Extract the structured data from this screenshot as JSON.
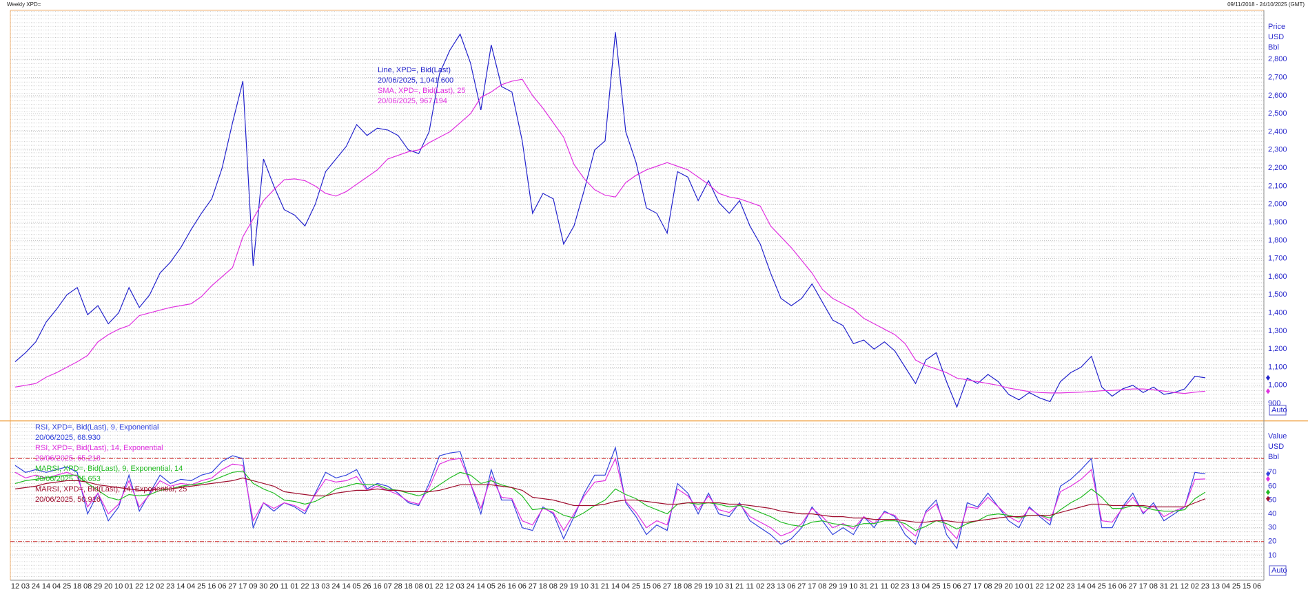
{
  "header": {
    "title": "Weekly XPD=",
    "range": "09/11/2018 - 24/10/2025 (GMT)"
  },
  "chart_data": [
    {
      "type": "line",
      "axis_title": [
        "Price",
        "USD",
        "Bbl"
      ],
      "button": "Auto",
      "ylim": [
        813,
        3071
      ],
      "yticks": [
        900,
        {
          "value": 1000,
          "label": "1,000"
        },
        {
          "value": 1100,
          "label": "1,100"
        },
        {
          "value": 1200,
          "label": "1,200"
        },
        {
          "value": 1300,
          "label": "1,300"
        },
        {
          "value": 1400,
          "label": "1,400"
        },
        {
          "value": 1500,
          "label": "1,500"
        },
        {
          "value": 1600,
          "label": "1,600"
        },
        {
          "value": 1700,
          "label": "1,700"
        },
        {
          "value": 1800,
          "label": "1,800"
        },
        {
          "value": 1900,
          "label": "1,900"
        },
        {
          "value": 2000,
          "label": "2,000"
        },
        {
          "value": 2100,
          "label": "2,100"
        },
        {
          "value": 2200,
          "label": "2,200"
        },
        {
          "value": 2300,
          "label": "2,300"
        },
        {
          "value": 2400,
          "label": "2,400"
        },
        {
          "value": 2500,
          "label": "2,500"
        },
        {
          "value": 2600,
          "label": "2,600"
        },
        {
          "value": 2700,
          "label": "2,700"
        },
        {
          "value": 2800,
          "label": "2,800"
        }
      ],
      "grid": true,
      "series": [
        {
          "name": "Line, XPD=, Bid(Last)",
          "label": "20/06/2025, 1,041.600",
          "color": "#2222cc",
          "values": [
            1130,
            1180,
            1240,
            1350,
            1420,
            1500,
            1540,
            1390,
            1440,
            1340,
            1400,
            1540,
            1430,
            1500,
            1620,
            1680,
            1760,
            1860,
            1950,
            2030,
            2200,
            2450,
            2680,
            1660,
            2250,
            2100,
            1970,
            1940,
            1880,
            2000,
            2180,
            2250,
            2320,
            2440,
            2380,
            2420,
            2410,
            2380,
            2300,
            2280,
            2400,
            2720,
            2850,
            2940,
            2780,
            2520,
            2880,
            2650,
            2620,
            2350,
            1950,
            2060,
            2030,
            1780,
            1880,
            2080,
            2300,
            2350,
            2950,
            2400,
            2230,
            1980,
            1950,
            1840,
            2180,
            2150,
            2020,
            2130,
            2010,
            1950,
            2020,
            1880,
            1780,
            1620,
            1480,
            1440,
            1480,
            1560,
            1460,
            1360,
            1330,
            1230,
            1250,
            1200,
            1240,
            1190,
            1100,
            1010,
            1140,
            1180,
            1020,
            880,
            1040,
            1010,
            1060,
            1020,
            950,
            920,
            960,
            930,
            910,
            1020,
            1070,
            1100,
            1160,
            990,
            940,
            980,
            1000,
            960,
            990,
            950,
            960,
            980,
            1050,
            1041.6,
            null,
            null,
            null,
            null,
            null
          ]
        },
        {
          "name": "SMA, XPD=, Bid(Last),  25",
          "label": "20/06/2025, 967.194",
          "color": "#e030e0",
          "values": [
            990,
            1000,
            1010,
            1045,
            1070,
            1100,
            1130,
            1165,
            1240,
            1280,
            1310,
            1330,
            1385,
            1400,
            1415,
            1430,
            1440,
            1450,
            1490,
            1550,
            1600,
            1650,
            1820,
            1920,
            2020,
            2080,
            2135,
            2140,
            2130,
            2100,
            2060,
            2045,
            2070,
            2110,
            2150,
            2190,
            2250,
            2270,
            2290,
            2300,
            2340,
            2370,
            2400,
            2450,
            2500,
            2590,
            2620,
            2660,
            2680,
            2690,
            2600,
            2530,
            2450,
            2370,
            2220,
            2140,
            2080,
            2050,
            2040,
            2120,
            2160,
            2190,
            2210,
            2230,
            2210,
            2190,
            2150,
            2110,
            2060,
            2040,
            2030,
            2010,
            1990,
            1880,
            1820,
            1760,
            1690,
            1620,
            1530,
            1480,
            1450,
            1420,
            1370,
            1340,
            1310,
            1280,
            1230,
            1140,
            1110,
            1090,
            1070,
            1040,
            1030,
            1020,
            1010,
            1000,
            985,
            975,
            965,
            960,
            958,
            958,
            960,
            962,
            966,
            970,
            972,
            975,
            980,
            980,
            975,
            968,
            960,
            955,
            962,
            967.194,
            null,
            null,
            null,
            null,
            null
          ]
        }
      ]
    },
    {
      "type": "line",
      "axis_title": [
        "Value",
        "USD",
        "Bbl"
      ],
      "button": "Auto",
      "ylim": [
        -6,
        106
      ],
      "yticks": [
        10,
        20,
        30,
        40,
        50,
        60,
        70
      ],
      "grid": true,
      "levels": [
        80,
        20
      ],
      "level_color": "#cc2222",
      "categories": [
        "12",
        "03",
        "24",
        "14",
        "04",
        "25",
        "18",
        "08",
        "29",
        "20",
        "10",
        "01",
        "22",
        "12",
        "02",
        "23",
        "14",
        "04",
        "25",
        "16",
        "06",
        "27",
        "17",
        "09",
        "30",
        "20",
        "11",
        "01",
        "22",
        "13",
        "03",
        "24",
        "14",
        "05",
        "26",
        "16",
        "07",
        "28",
        "18",
        "08",
        "01",
        "22",
        "12",
        "03",
        "24",
        "14",
        "05",
        "26",
        "16",
        "06",
        "27",
        "18",
        "08",
        "29",
        "19",
        "10",
        "31",
        "21",
        "14",
        "04",
        "25",
        "15",
        "06",
        "27",
        "18",
        "08",
        "29",
        "19",
        "10",
        "31",
        "21",
        "11",
        "02",
        "23",
        "13",
        "06",
        "27",
        "17",
        "08",
        "29",
        "19",
        "10",
        "31",
        "21",
        "11",
        "02",
        "23",
        "13",
        "04",
        "25",
        "15",
        "06",
        "27",
        "17",
        "08",
        "29",
        "20",
        "10",
        "01",
        "22",
        "12",
        "02",
        "23",
        "14",
        "04",
        "25",
        "16",
        "06",
        "27",
        "17",
        "08",
        "31",
        "21",
        "12",
        "02",
        "23",
        "13",
        "04",
        "25",
        "15",
        "06"
      ],
      "series": [
        {
          "name": "RSI, XPD=, Bid(Last),  9, Exponential",
          "label": "20/06/2025, 68.930",
          "color": "#3344dd",
          "values": [
            75,
            70,
            72,
            70,
            72,
            74,
            70,
            40,
            55,
            35,
            45,
            68,
            42,
            55,
            68,
            62,
            65,
            64,
            68,
            70,
            78,
            82,
            80,
            30,
            48,
            42,
            48,
            45,
            40,
            55,
            70,
            66,
            68,
            72,
            58,
            62,
            60,
            55,
            48,
            46,
            62,
            82,
            84,
            85,
            62,
            40,
            72,
            50,
            50,
            30,
            28,
            45,
            40,
            22,
            38,
            55,
            68,
            68,
            88,
            48,
            38,
            25,
            32,
            28,
            62,
            55,
            40,
            55,
            40,
            38,
            48,
            35,
            30,
            25,
            18,
            22,
            30,
            45,
            35,
            25,
            30,
            25,
            38,
            30,
            42,
            38,
            25,
            18,
            42,
            50,
            25,
            15,
            48,
            45,
            55,
            45,
            35,
            30,
            45,
            38,
            32,
            60,
            65,
            72,
            80,
            30,
            30,
            45,
            55,
            40,
            48,
            35,
            40,
            45,
            70,
            68.93,
            null,
            null,
            null,
            null,
            null
          ]
        },
        {
          "name": "RSI, XPD=, Bid(Last),  14, Exponential",
          "label": "20/06/2025, 65.218",
          "color": "#e030e0",
          "values": [
            70,
            66,
            68,
            66,
            68,
            70,
            67,
            45,
            55,
            40,
            47,
            64,
            45,
            54,
            64,
            60,
            62,
            61,
            64,
            66,
            72,
            76,
            75,
            35,
            48,
            44,
            48,
            46,
            42,
            54,
            65,
            63,
            64,
            67,
            57,
            60,
            57,
            54,
            49,
            47,
            59,
            76,
            79,
            80,
            62,
            44,
            67,
            52,
            51,
            35,
            32,
            44,
            41,
            28,
            40,
            53,
            63,
            64,
            80,
            49,
            41,
            30,
            35,
            32,
            58,
            53,
            43,
            53,
            43,
            41,
            47,
            38,
            34,
            30,
            24,
            27,
            33,
            44,
            38,
            30,
            33,
            29,
            38,
            33,
            41,
            39,
            30,
            24,
            41,
            47,
            30,
            22,
            45,
            44,
            52,
            45,
            38,
            34,
            44,
            39,
            35,
            56,
            60,
            65,
            72,
            35,
            34,
            44,
            52,
            41,
            46,
            38,
            42,
            45,
            65,
            65.218,
            null,
            null,
            null,
            null,
            null
          ]
        },
        {
          "name": "MARSI, XPD=, Bid(Last),  9, Exponential, 14",
          "label": "20/06/2025, 55.653",
          "color": "#22bb22",
          "values": [
            62,
            64,
            65,
            66,
            67,
            68,
            68,
            62,
            57,
            52,
            50,
            54,
            53,
            54,
            57,
            58,
            60,
            61,
            62,
            64,
            67,
            70,
            71,
            62,
            58,
            55,
            50,
            49,
            47,
            49,
            53,
            58,
            60,
            62,
            61,
            61,
            58,
            57,
            55,
            53,
            56,
            61,
            66,
            70,
            68,
            62,
            64,
            61,
            59,
            53,
            43,
            44,
            43,
            39,
            37,
            41,
            46,
            50,
            58,
            54,
            51,
            46,
            43,
            40,
            47,
            48,
            47,
            48,
            47,
            45,
            46,
            44,
            41,
            38,
            34,
            32,
            31,
            34,
            35,
            33,
            32,
            31,
            33,
            33,
            35,
            35,
            33,
            28,
            31,
            35,
            33,
            29,
            33,
            35,
            39,
            40,
            39,
            37,
            39,
            39,
            37,
            43,
            48,
            52,
            58,
            52,
            44,
            44,
            46,
            45,
            43,
            42,
            42,
            43,
            51,
            55.653,
            null,
            null,
            null,
            null,
            null
          ]
        },
        {
          "name": "MARSI, XPD=, Bid(Last),  14, Exponential, 25",
          "label": "20/06/2025, 50.916",
          "color": "#a01030",
          "values": [
            58,
            59,
            60,
            62,
            63,
            64,
            64,
            63,
            61,
            60,
            59,
            58,
            57,
            57,
            58,
            58,
            59,
            60,
            61,
            62,
            63,
            64,
            66,
            64,
            62,
            60,
            56,
            55,
            54,
            53,
            53,
            55,
            56,
            57,
            57,
            58,
            57,
            57,
            56,
            56,
            56,
            57,
            59,
            61,
            61,
            61,
            61,
            60,
            59,
            57,
            52,
            51,
            50,
            48,
            46,
            46,
            46,
            47,
            49,
            50,
            50,
            49,
            48,
            47,
            47,
            48,
            48,
            48,
            48,
            47,
            47,
            46,
            45,
            44,
            42,
            41,
            40,
            40,
            39,
            38,
            38,
            37,
            37,
            36,
            36,
            36,
            35,
            34,
            34,
            35,
            35,
            34,
            34,
            35,
            36,
            37,
            38,
            38,
            39,
            39,
            39,
            41,
            43,
            45,
            47,
            47,
            46,
            46,
            46,
            46,
            45,
            45,
            45,
            45,
            48,
            50.916,
            null,
            null,
            null,
            null,
            null
          ]
        }
      ]
    }
  ]
}
